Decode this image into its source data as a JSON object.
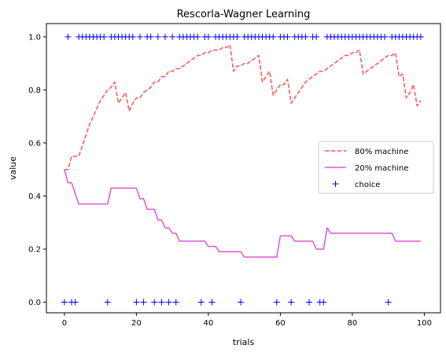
{
  "chart_data": {
    "type": "line",
    "title": "Rescorla-Wagner Learning",
    "xlabel": "trials",
    "ylabel": "value",
    "xlim": [
      -5,
      104.5
    ],
    "ylim": [
      -0.04,
      1.05
    ],
    "xticks": [
      0,
      20,
      40,
      60,
      80,
      100
    ],
    "xtick_labels": [
      "0",
      "20",
      "40",
      "60",
      "80",
      "100"
    ],
    "yticks": [
      0.0,
      0.2,
      0.4,
      0.6,
      0.8,
      1.0
    ],
    "ytick_labels": [
      "0.0",
      "0.2",
      "0.4",
      "0.6",
      "0.8",
      "1.0"
    ],
    "grid": false,
    "legend_position": "center-right",
    "legend": [
      {
        "label": "80% machine",
        "style": "dashed",
        "color": "#ff5555"
      },
      {
        "label": "20% machine",
        "style": "solid",
        "color": "#dd55dd"
      },
      {
        "label": "choice",
        "style": "plus",
        "color": "#0000ff"
      }
    ],
    "series": [
      {
        "name": "80% machine",
        "color": "#ff5555",
        "style": "dashed",
        "x": [
          0,
          1,
          2,
          3,
          4,
          5,
          6,
          7,
          8,
          9,
          10,
          11,
          12,
          13,
          14,
          15,
          16,
          17,
          18,
          19,
          20,
          21,
          22,
          23,
          24,
          25,
          26,
          27,
          28,
          29,
          30,
          31,
          32,
          33,
          34,
          35,
          36,
          37,
          38,
          39,
          40,
          41,
          42,
          43,
          44,
          45,
          46,
          47,
          48,
          49,
          50,
          51,
          52,
          53,
          54,
          55,
          56,
          57,
          58,
          59,
          60,
          61,
          62,
          63,
          64,
          65,
          66,
          67,
          68,
          69,
          70,
          71,
          72,
          73,
          74,
          75,
          76,
          77,
          78,
          79,
          80,
          81,
          82,
          83,
          84,
          85,
          86,
          87,
          88,
          89,
          90,
          91,
          92,
          93,
          94,
          95,
          96,
          97,
          98,
          99
        ],
        "values": [
          0.5,
          0.5,
          0.55,
          0.55,
          0.55,
          0.59,
          0.63,
          0.67,
          0.7,
          0.73,
          0.76,
          0.78,
          0.8,
          0.81,
          0.83,
          0.75,
          0.77,
          0.79,
          0.72,
          0.75,
          0.77,
          0.77,
          0.79,
          0.8,
          0.81,
          0.83,
          0.83,
          0.85,
          0.85,
          0.87,
          0.87,
          0.88,
          0.88,
          0.89,
          0.9,
          0.91,
          0.92,
          0.93,
          0.93,
          0.94,
          0.94,
          0.95,
          0.95,
          0.95,
          0.96,
          0.96,
          0.97,
          0.87,
          0.89,
          0.89,
          0.9,
          0.9,
          0.91,
          0.92,
          0.93,
          0.83,
          0.85,
          0.87,
          0.78,
          0.8,
          0.82,
          0.82,
          0.84,
          0.75,
          0.77,
          0.79,
          0.81,
          0.83,
          0.84,
          0.85,
          0.86,
          0.87,
          0.87,
          0.88,
          0.89,
          0.9,
          0.91,
          0.92,
          0.93,
          0.93,
          0.94,
          0.94,
          0.95,
          0.86,
          0.87,
          0.88,
          0.89,
          0.9,
          0.91,
          0.92,
          0.93,
          0.93,
          0.94,
          0.85,
          0.86,
          0.77,
          0.79,
          0.82,
          0.74,
          0.76
        ]
      },
      {
        "name": "20% machine",
        "color": "#dd55dd",
        "style": "solid",
        "x": [
          0,
          1,
          2,
          3,
          4,
          5,
          6,
          7,
          8,
          9,
          10,
          11,
          12,
          13,
          14,
          15,
          16,
          17,
          18,
          19,
          20,
          21,
          22,
          23,
          24,
          25,
          26,
          27,
          28,
          29,
          30,
          31,
          32,
          33,
          34,
          35,
          36,
          37,
          38,
          39,
          40,
          41,
          42,
          43,
          44,
          45,
          46,
          47,
          48,
          49,
          50,
          51,
          52,
          53,
          54,
          55,
          56,
          57,
          58,
          59,
          60,
          61,
          62,
          63,
          64,
          65,
          66,
          67,
          68,
          69,
          70,
          71,
          72,
          73,
          74,
          75,
          76,
          77,
          78,
          79,
          80,
          81,
          82,
          83,
          84,
          85,
          86,
          87,
          88,
          89,
          90,
          91,
          92,
          93,
          94,
          95,
          96,
          97,
          98,
          99
        ],
        "values": [
          0.5,
          0.45,
          0.45,
          0.41,
          0.37,
          0.37,
          0.37,
          0.37,
          0.37,
          0.37,
          0.37,
          0.37,
          0.37,
          0.43,
          0.43,
          0.43,
          0.43,
          0.43,
          0.43,
          0.43,
          0.43,
          0.39,
          0.39,
          0.35,
          0.35,
          0.35,
          0.31,
          0.31,
          0.28,
          0.28,
          0.26,
          0.26,
          0.23,
          0.23,
          0.23,
          0.23,
          0.23,
          0.23,
          0.23,
          0.23,
          0.21,
          0.21,
          0.21,
          0.19,
          0.19,
          0.19,
          0.19,
          0.19,
          0.19,
          0.19,
          0.17,
          0.17,
          0.17,
          0.17,
          0.17,
          0.17,
          0.17,
          0.17,
          0.17,
          0.17,
          0.25,
          0.25,
          0.25,
          0.25,
          0.23,
          0.23,
          0.23,
          0.23,
          0.23,
          0.23,
          0.2,
          0.2,
          0.2,
          0.28,
          0.26,
          0.26,
          0.26,
          0.26,
          0.26,
          0.26,
          0.26,
          0.26,
          0.26,
          0.26,
          0.26,
          0.26,
          0.26,
          0.26,
          0.26,
          0.26,
          0.26,
          0.26,
          0.23,
          0.23,
          0.23,
          0.23,
          0.23,
          0.23,
          0.23,
          0.23
        ]
      },
      {
        "name": "choice",
        "color": "#0000ff",
        "style": "plus",
        "x": [
          0,
          1,
          2,
          3,
          4,
          5,
          6,
          7,
          8,
          9,
          10,
          11,
          12,
          13,
          14,
          15,
          16,
          17,
          18,
          19,
          20,
          21,
          22,
          23,
          24,
          25,
          26,
          27,
          28,
          29,
          30,
          31,
          32,
          33,
          34,
          35,
          36,
          37,
          38,
          39,
          40,
          41,
          42,
          43,
          44,
          45,
          46,
          47,
          48,
          49,
          50,
          51,
          52,
          53,
          54,
          55,
          56,
          57,
          58,
          59,
          60,
          61,
          62,
          63,
          64,
          65,
          66,
          67,
          68,
          69,
          70,
          71,
          72,
          73,
          74,
          75,
          76,
          77,
          78,
          79,
          80,
          81,
          82,
          83,
          84,
          85,
          86,
          87,
          88,
          89,
          90,
          91,
          92,
          93,
          94,
          95,
          96,
          97,
          98,
          99
        ],
        "values": [
          0,
          1,
          0,
          0,
          1,
          1,
          1,
          1,
          1,
          1,
          1,
          1,
          0,
          1,
          1,
          1,
          1,
          1,
          1,
          1,
          0,
          1,
          0,
          1,
          1,
          0,
          1,
          0,
          1,
          0,
          1,
          0,
          1,
          1,
          1,
          1,
          1,
          1,
          0,
          1,
          1,
          0,
          1,
          1,
          1,
          1,
          1,
          1,
          1,
          0,
          1,
          1,
          1,
          1,
          1,
          1,
          1,
          1,
          1,
          0,
          1,
          1,
          1,
          0,
          1,
          1,
          1,
          1,
          0,
          1,
          1,
          0,
          0,
          1,
          1,
          1,
          1,
          1,
          1,
          1,
          1,
          1,
          1,
          1,
          1,
          1,
          1,
          1,
          1,
          1,
          0,
          1,
          1,
          1,
          1,
          1,
          1,
          1,
          1,
          1
        ]
      }
    ]
  }
}
